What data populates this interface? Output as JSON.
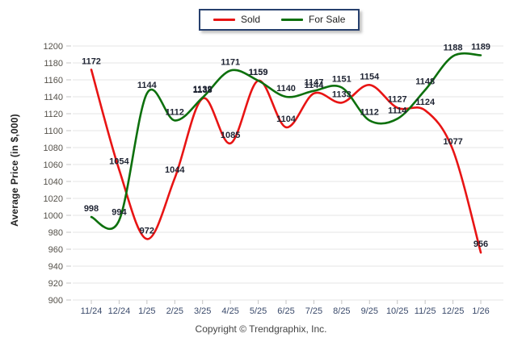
{
  "chart_data": {
    "type": "line",
    "categories": [
      "11/24",
      "12/24",
      "1/25",
      "2/25",
      "3/25",
      "4/25",
      "5/25",
      "6/25",
      "7/25",
      "8/25",
      "9/25",
      "10/25",
      "11/25",
      "12/25",
      "1/26"
    ],
    "series": [
      {
        "name": "Sold",
        "color": "#e81414",
        "values": [
          1172,
          1054,
          972,
          1044,
          1138,
          1085,
          1159,
          1104,
          1144,
          1133,
          1154,
          1127,
          1124,
          1077,
          956
        ]
      },
      {
        "name": "For Sale",
        "color": "#0d700d",
        "values": [
          998,
          994,
          1144,
          1112,
          1139,
          1171,
          1159,
          1140,
          1147,
          1151,
          1112,
          1114,
          1148,
          1188,
          1189
        ]
      }
    ],
    "title": "",
    "xlabel": "",
    "ylabel": "Average Price (in $,000)",
    "ylim": [
      900,
      1200
    ],
    "ytick_step": 20,
    "grid": true,
    "legend_position": "top-center",
    "point_labels_shown": true
  },
  "colors": {
    "data_label": "#1f2433",
    "y_tick_label": "#55514a",
    "x_tick_label": "#3a4a6b",
    "gridline": "#e5e5e5",
    "tick_mark": "#c4c4c4",
    "legend_border": "#27406e"
  },
  "footer": {
    "copyright": "Copyright © Trendgraphix, Inc."
  }
}
